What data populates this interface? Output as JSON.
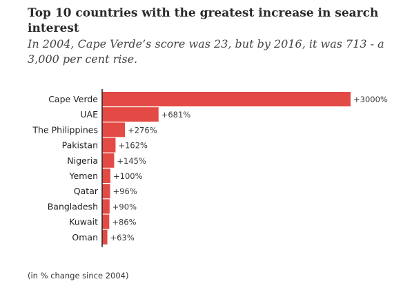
{
  "title": "Top 10 countries with the greatest increase in search interest",
  "subtitle": "In 2004, Cape Verde’s score was 23, but by 2016, it was 713 - a 3,000 per cent rise.",
  "footnote": "(in % change since 2004)",
  "colors": {
    "bar": "#e34a45",
    "axis": "#222222"
  },
  "chart_data": {
    "type": "bar",
    "orientation": "horizontal",
    "categories": [
      "Cape Verde",
      "UAE",
      "The Philippines",
      "Pakistan",
      "Nigeria",
      "Yemen",
      "Qatar",
      "Bangladesh",
      "Kuwait",
      "Oman"
    ],
    "values": [
      3000,
      681,
      276,
      162,
      145,
      100,
      96,
      90,
      86,
      63
    ],
    "value_labels": [
      "+3000%",
      "+681%",
      "+276%",
      "+162%",
      "+145%",
      "+100%",
      "+96%",
      "+90%",
      "+86%",
      "+63%"
    ],
    "xlim": [
      0,
      3000
    ],
    "grid": false,
    "legend": "none"
  }
}
